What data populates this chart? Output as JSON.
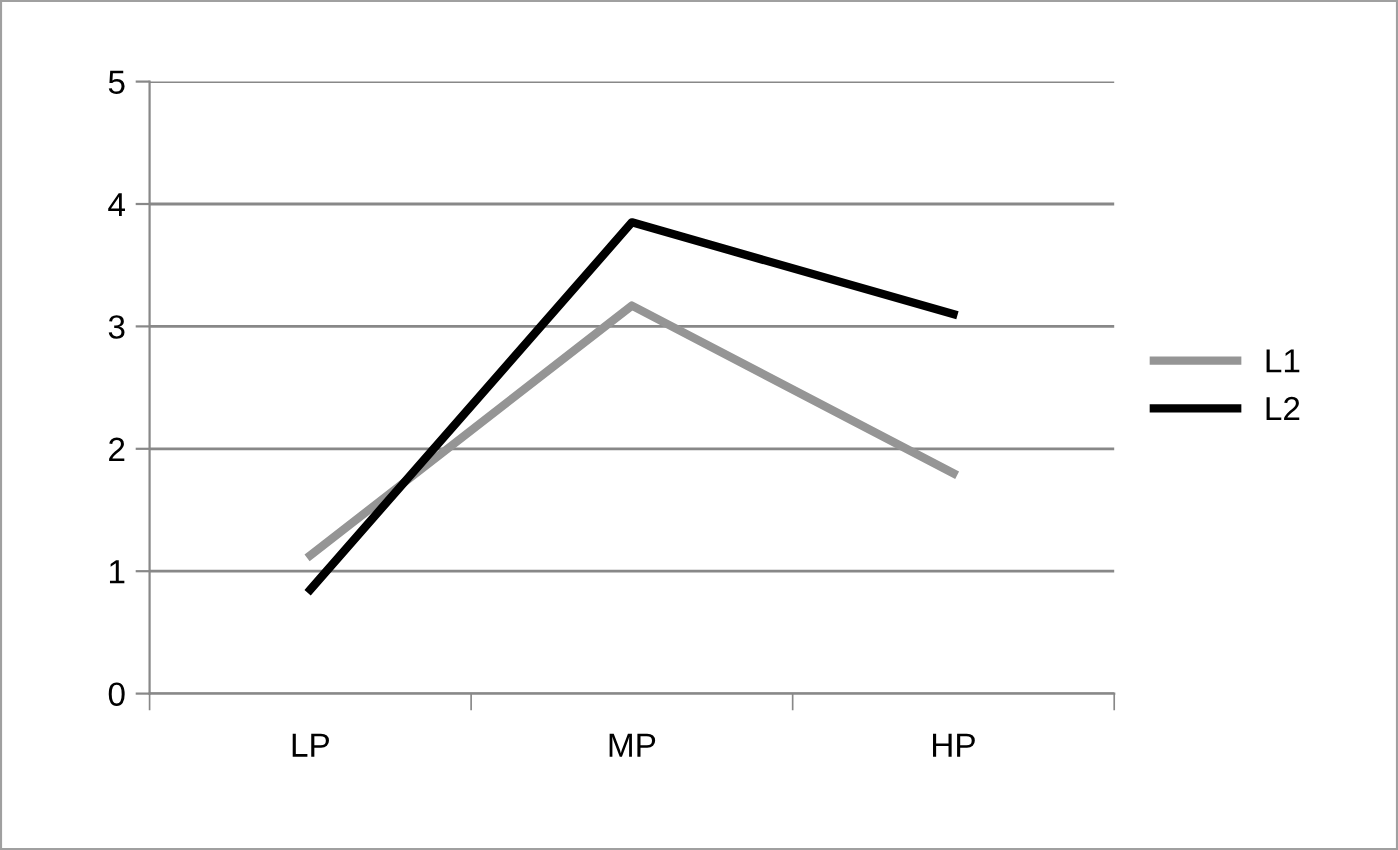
{
  "chart_data": {
    "type": "line",
    "categories": [
      "LP",
      "MP",
      "HP"
    ],
    "series": [
      {
        "name": "L1",
        "color": "#959595",
        "values": [
          1.13,
          3.17,
          1.8
        ]
      },
      {
        "name": "L2",
        "color": "#000000",
        "values": [
          0.85,
          3.85,
          3.1
        ]
      }
    ],
    "ylim": [
      0,
      5
    ],
    "yticks": [
      0,
      1,
      2,
      3,
      4,
      5
    ],
    "grid": "y",
    "legend": "right",
    "marker": "none",
    "line_style": "solid"
  }
}
